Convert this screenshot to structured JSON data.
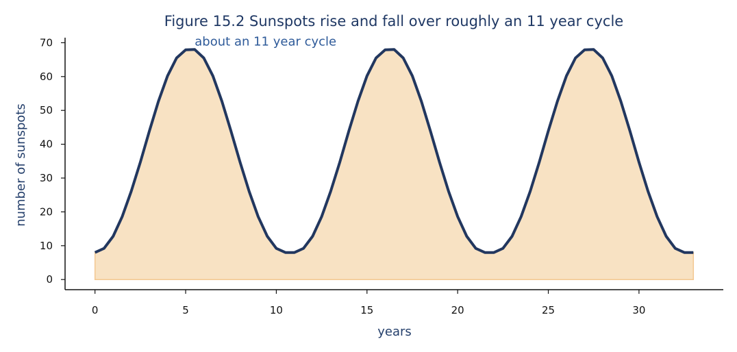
{
  "chart_data": {
    "type": "area",
    "title": "Figure 15.2  Sunspots rise and fall over roughly an 11 year cycle",
    "xlabel": "years",
    "ylabel": "number of sunspots",
    "xlim": [
      -1.65,
      34.65
    ],
    "ylim": [
      -3,
      71.5
    ],
    "xticks": [
      0,
      5,
      10,
      15,
      20,
      25,
      30
    ],
    "yticks": [
      0,
      10,
      20,
      30,
      40,
      50,
      60,
      70
    ],
    "grid": false,
    "legend": "none",
    "series": [
      {
        "x": [
          0,
          0.5,
          1,
          1.5,
          2,
          2.5,
          3,
          3.5,
          4,
          4.5,
          5,
          5.5,
          6,
          6.5,
          7,
          7.5,
          8,
          8.5,
          9,
          9.5,
          10,
          10.5,
          11,
          11.5,
          12,
          12.5,
          13,
          13.5,
          14,
          14.5,
          15,
          15.5,
          16,
          16.5,
          17,
          17.5,
          18,
          18.5,
          19,
          19.5,
          20,
          20.5,
          21,
          21.5,
          22,
          22.5,
          23,
          23.5,
          24,
          24.5,
          25,
          25.5,
          26,
          26.5,
          27,
          27.5,
          28,
          28.5,
          29,
          29.5,
          30,
          30.5,
          31,
          31.5,
          32,
          32.5,
          33
        ],
        "y": [
          8,
          9.2,
          12.8,
          18.6,
          26.1,
          34.7,
          43.9,
          52.7,
          60.2,
          65.5,
          67.9,
          68,
          65.5,
          60.2,
          52.7,
          43.9,
          34.7,
          26.1,
          18.6,
          12.8,
          9.2,
          8,
          8,
          9.2,
          12.8,
          18.6,
          26.1,
          34.7,
          43.9,
          52.7,
          60.2,
          65.5,
          67.9,
          68,
          65.5,
          60.2,
          52.7,
          43.9,
          34.7,
          26.1,
          18.6,
          12.8,
          9.2,
          8,
          8,
          9.2,
          12.8,
          18.6,
          26.1,
          34.7,
          43.9,
          52.7,
          60.2,
          65.5,
          67.9,
          68,
          65.5,
          60.2,
          52.7,
          43.9,
          34.7,
          26.1,
          18.6,
          12.8,
          9.2,
          8,
          8
        ]
      }
    ],
    "annotation": {
      "text": "about an 11 year cycle",
      "x": 5.5,
      "y": 68
    },
    "colors": {
      "line": "#22375f",
      "fill": "#f8e2c3",
      "fill_edge": "#f3c892",
      "title": "#1f3864",
      "annotation": "#2e5a99"
    }
  }
}
